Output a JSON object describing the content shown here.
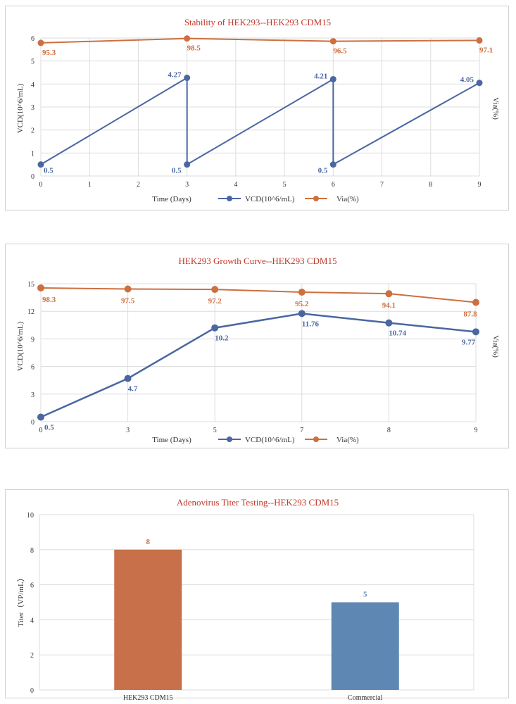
{
  "colors": {
    "vcd": "#4a67a1",
    "via": "#cd6f3f",
    "bar_a": "#c8704a",
    "bar_b": "#5f87b3",
    "title": "#c0392b"
  },
  "chart_data": [
    {
      "type": "line",
      "title": "Stability of HEK293--HEK293 CDM15",
      "xlabel": "Time (Days)",
      "ylabel": "VCD(10^6/mL)",
      "ylabel_right": "Via(%)",
      "x_ticks": [
        "0",
        "1",
        "2",
        "3",
        "4",
        "5",
        "6",
        "7",
        "8",
        "9"
      ],
      "y_ticks": [
        "0",
        "1",
        "2",
        "3",
        "4",
        "5",
        "6"
      ],
      "xlim": [
        0,
        9
      ],
      "ylim": [
        0,
        6
      ],
      "grid": true,
      "legend": "bottom",
      "series": [
        {
          "name": "VCD(10^6/mL)",
          "x": [
            0,
            3,
            3,
            6,
            6,
            9
          ],
          "y": [
            0.5,
            4.27,
            0.5,
            4.21,
            0.5,
            4.05
          ],
          "labels": [
            "0.5",
            "4.27",
            "0.5",
            "4.21",
            "0.5",
            "4.05"
          ]
        },
        {
          "name": "Via(%)",
          "x": [
            0,
            3,
            6,
            9
          ],
          "y": [
            95.3,
            98.5,
            96.5,
            97.1
          ],
          "labels": [
            "95.3",
            "98.5",
            "96.5",
            "97.1"
          ]
        }
      ]
    },
    {
      "type": "line",
      "title": "HEK293 Growth Curve--HEK293 CDM15",
      "xlabel": "Time (Days)",
      "ylabel": "VCD(10^6/mL)",
      "ylabel_right": "Via(%)",
      "categories": [
        "0",
        "3",
        "5",
        "7",
        "8",
        "9"
      ],
      "y_ticks": [
        "0",
        "3",
        "6",
        "9",
        "12",
        "15"
      ],
      "ylim": [
        0,
        15
      ],
      "grid": true,
      "legend": "bottom",
      "series": [
        {
          "name": "VCD(10^6/mL)",
          "values": [
            0.5,
            4.7,
            10.2,
            11.76,
            10.74,
            9.77
          ],
          "labels": [
            "0.5",
            "4.7",
            "10.2",
            "11.76",
            "10.74",
            "9.77"
          ]
        },
        {
          "name": "Via(%)",
          "values": [
            98.3,
            97.5,
            97.2,
            95.2,
            94.1,
            87.8
          ],
          "labels": [
            "98.3",
            "97.5",
            "97.2",
            "95.2",
            "94.1",
            "87.8"
          ]
        }
      ]
    },
    {
      "type": "bar",
      "title": "Adenovirus Titer Testing--HEK293 CDM15",
      "xlabel": "",
      "ylabel": "Titer（VP/mL）",
      "categories": [
        "HEK293 CDM15",
        "Commercial"
      ],
      "values": [
        8,
        5
      ],
      "labels": [
        "8",
        "5"
      ],
      "y_ticks": [
        "0",
        "2",
        "4",
        "6",
        "8",
        "10"
      ],
      "ylim": [
        0,
        10
      ],
      "grid": true
    }
  ]
}
